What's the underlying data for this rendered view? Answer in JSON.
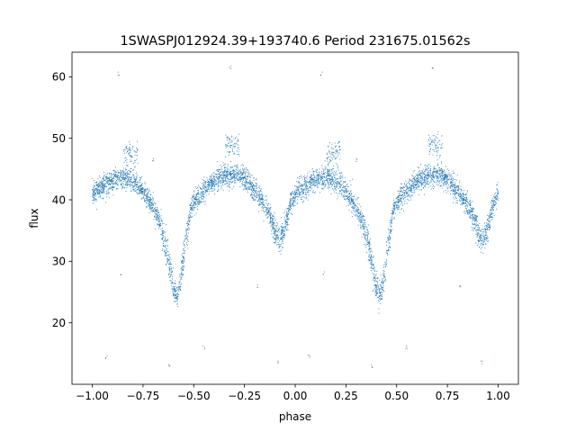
{
  "chart_data": {
    "type": "scatter",
    "title": "1SWASPJ012924.39+193740.6 Period 231675.01562s",
    "xlabel": "phase",
    "ylabel": "flux",
    "xlim": [
      -1.1,
      1.1
    ],
    "ylim": [
      10,
      64
    ],
    "x_ticks": [
      -1.0,
      -0.75,
      -0.5,
      -0.25,
      0.0,
      0.25,
      0.5,
      0.75,
      1.0
    ],
    "x_tick_labels": [
      "−1.00",
      "−0.75",
      "−0.50",
      "−0.25",
      "0.00",
      "0.25",
      "0.50",
      "0.75",
      "1.00"
    ],
    "y_ticks": [
      20,
      30,
      40,
      50,
      60
    ],
    "y_tick_labels": [
      "20",
      "30",
      "40",
      "50",
      "60"
    ],
    "grid": false,
    "marker_color": "#1f77b4",
    "curve_profile": {
      "phase": [
        0.0,
        0.04,
        0.08,
        0.12,
        0.16,
        0.18,
        0.2,
        0.24,
        0.28,
        0.32,
        0.34,
        0.36,
        0.38,
        0.4,
        0.42,
        0.44,
        0.46,
        0.48,
        0.5,
        0.55,
        0.6,
        0.65,
        0.7,
        0.75,
        0.8,
        0.84,
        0.88,
        0.9,
        0.92,
        0.94,
        0.96,
        0.98,
        1.0
      ],
      "flux": [
        41.0,
        42.0,
        42.8,
        43.3,
        43.6,
        43.5,
        43.0,
        41.8,
        40.0,
        37.5,
        35.5,
        33.0,
        29.5,
        25.5,
        24.5,
        28.0,
        33.0,
        37.5,
        39.5,
        41.5,
        43.0,
        43.8,
        44.0,
        43.5,
        41.5,
        39.5,
        37.0,
        35.0,
        33.5,
        34.5,
        37.0,
        39.5,
        41.0
      ]
    },
    "bump_clusters": [
      {
        "phase": 0.69,
        "flux": 48.8
      },
      {
        "phase": 0.19,
        "flux": 47.5
      }
    ],
    "outliers": [
      {
        "phase": -0.87,
        "flux": 60.5
      },
      {
        "phase": 0.13,
        "flux": 60.5
      },
      {
        "phase": -0.32,
        "flux": 61.5
      },
      {
        "phase": 0.68,
        "flux": 61.5
      },
      {
        "phase": -0.45,
        "flux": 16.0
      },
      {
        "phase": 0.55,
        "flux": 16.0
      },
      {
        "phase": -0.08,
        "flux": 13.5
      },
      {
        "phase": 0.92,
        "flux": 13.5
      },
      {
        "phase": -0.19,
        "flux": 26.0
      },
      {
        "phase": 0.81,
        "flux": 26.0
      },
      {
        "phase": -0.86,
        "flux": 28.0
      },
      {
        "phase": 0.14,
        "flux": 28.0
      },
      {
        "phase": -0.62,
        "flux": 13.0
      },
      {
        "phase": 0.38,
        "flux": 13.0
      },
      {
        "phase": -0.7,
        "flux": 46.5
      },
      {
        "phase": 0.3,
        "flux": 46.5
      },
      {
        "phase": -0.93,
        "flux": 14.5
      },
      {
        "phase": 0.07,
        "flux": 14.5
      }
    ],
    "points_per_phase_unit": 2600,
    "scatter_sigma": 0.9
  }
}
